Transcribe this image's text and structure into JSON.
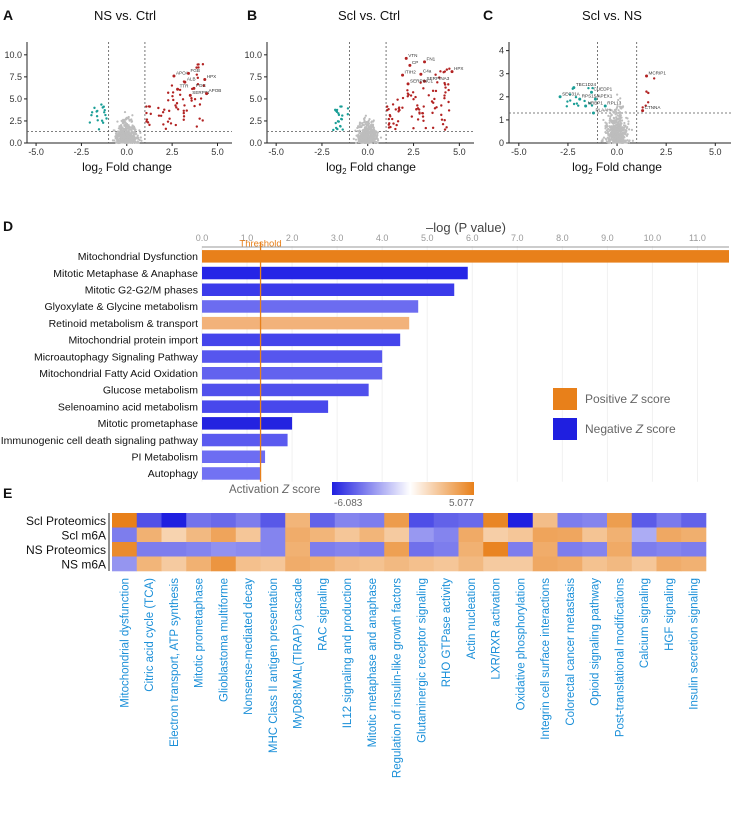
{
  "colors": {
    "up": "#b22222",
    "down": "#1a9e96",
    "ns": "#bdbdbd",
    "positive": "#e8801a",
    "negative": "#1f1fe0",
    "threshold": "#e8801a",
    "label_blue": "#1a8fd8"
  },
  "panels": {
    "A": {
      "letter": "A",
      "title": "NS vs. Ctrl",
      "xlabel_main": "log",
      "xlabel_sub": "2",
      "xlabel_tail": " Fold change"
    },
    "B": {
      "letter": "B",
      "title": "Scl vs. Ctrl",
      "xlabel_main": "log",
      "xlabel_sub": "2",
      "xlabel_tail": " Fold change"
    },
    "C": {
      "letter": "C",
      "title": "Scl vs. NS",
      "xlabel_main": "log",
      "xlabel_sub": "2",
      "xlabel_tail": " Fold change"
    },
    "D": {
      "letter": "D"
    },
    "E": {
      "letter": "E"
    }
  },
  "chart_data": [
    {
      "type": "scatter",
      "panel": "A",
      "title": "NS vs. Ctrl",
      "xlabel": "log2 Fold change",
      "xlim": [
        -5.5,
        5.8
      ],
      "ylim": [
        0,
        11
      ],
      "xticks": [
        "-5.0",
        "-2.5",
        "0.0",
        "2.5",
        "5.0"
      ],
      "xtick_values": [
        -5,
        -2.5,
        0,
        2.5,
        5
      ],
      "yticks": [
        "0.0",
        "2.5",
        "5.0",
        "7.5",
        "10.0"
      ],
      "ytick_values": [
        0,
        2.5,
        5,
        7.5,
        10
      ],
      "vlines": [
        -1,
        1
      ],
      "hline": 1.3,
      "labeled_points": [
        {
          "label": "APOA",
          "x": 2.6,
          "y": 7.6
        },
        {
          "label": "FGB",
          "x": 3.4,
          "y": 7.9
        },
        {
          "label": "ALB",
          "x": 3.2,
          "y": 6.9
        },
        {
          "label": "HPX",
          "x": 4.3,
          "y": 7.2
        },
        {
          "label": "TTR",
          "x": 2.8,
          "y": 6.1
        },
        {
          "label": "FGG",
          "x": 3.7,
          "y": 6.2
        },
        {
          "label": "SERPIN",
          "x": 3.5,
          "y": 5.4
        },
        {
          "label": "APOB",
          "x": 4.4,
          "y": 5.6
        }
      ]
    },
    {
      "type": "scatter",
      "panel": "B",
      "title": "Scl vs. Ctrl",
      "xlabel": "log2 Fold change",
      "xlim": [
        -5.5,
        5.8
      ],
      "ylim": [
        0,
        11
      ],
      "xticks": [
        "-5.0",
        "-2.5",
        "0.0",
        "2.5",
        "5.0"
      ],
      "xtick_values": [
        -5,
        -2.5,
        0,
        2.5,
        5
      ],
      "yticks": [
        "0.0",
        "2.5",
        "5.0",
        "7.5",
        "10.0"
      ],
      "ytick_values": [
        0,
        2.5,
        5,
        7.5,
        10
      ],
      "vlines": [
        -1,
        1
      ],
      "hline": 1.3,
      "labeled_points": [
        {
          "label": "VTN",
          "x": 2.1,
          "y": 9.6
        },
        {
          "label": "FN1",
          "x": 3.1,
          "y": 9.2
        },
        {
          "label": "CP",
          "x": 2.3,
          "y": 8.8
        },
        {
          "label": "C4a",
          "x": 2.9,
          "y": 7.8
        },
        {
          "label": "HPX",
          "x": 4.6,
          "y": 8.1
        },
        {
          "label": "ITIH2",
          "x": 1.9,
          "y": 7.7
        },
        {
          "label": "SERPINA3",
          "x": 3.1,
          "y": 7.0
        },
        {
          "label": "SERPINC1",
          "x": 2.2,
          "y": 6.7
        }
      ]
    },
    {
      "type": "scatter",
      "panel": "C",
      "title": "Scl vs. NS",
      "xlabel": "log2 Fold change",
      "xlim": [
        -5.5,
        5.8
      ],
      "ylim": [
        0,
        4.2
      ],
      "xticks": [
        "-5.0",
        "-2.5",
        "0.0",
        "2.5",
        "5.0"
      ],
      "xtick_values": [
        -5,
        -2.5,
        0,
        2.5,
        5
      ],
      "yticks": [
        "0",
        "1",
        "2",
        "3",
        "4"
      ],
      "ytick_values": [
        0,
        1,
        2,
        3,
        4
      ],
      "vlines": [
        -1,
        1
      ],
      "hline": 1.3,
      "labeled_points": [
        {
          "label": "MCRIP1",
          "x": 1.5,
          "y": 2.9
        },
        {
          "label": "TBC1D24",
          "x": -2.2,
          "y": 2.4
        },
        {
          "label": "CUEDP1",
          "x": -1.3,
          "y": 2.2
        },
        {
          "label": "SEC31A",
          "x": -2.9,
          "y": 2.0
        },
        {
          "label": "RPS15A",
          "x": -1.9,
          "y": 1.9
        },
        {
          "label": "APEX1",
          "x": -1.1,
          "y": 1.9
        },
        {
          "label": "NRBP1",
          "x": -1.6,
          "y": 1.6
        },
        {
          "label": "RPL13",
          "x": -0.6,
          "y": 1.6
        },
        {
          "label": "CTNNA",
          "x": 1.3,
          "y": 1.4
        },
        {
          "label": "PLAAH",
          "x": -1.2,
          "y": 1.3
        }
      ]
    },
    {
      "type": "bar",
      "panel": "D",
      "orientation": "horizontal",
      "xlabel": "–log (P value)",
      "xlim": [
        0,
        11.7
      ],
      "xticks": [
        "0.0",
        "1.0",
        "2.0",
        "3.0",
        "4.0",
        "5.0",
        "6.0",
        "7.0",
        "8.0",
        "9.0",
        "10.0",
        "11.0"
      ],
      "xtick_values": [
        0,
        1,
        2,
        3,
        4,
        5,
        6,
        7,
        8,
        9,
        10,
        11
      ],
      "threshold_label": "Threshold",
      "threshold": 1.3,
      "categories": [
        "Mitochondrial Dysfunction",
        "Mitotic Metaphase & Anaphase",
        "Mitotic G2-G2/M phases",
        "Glyoxylate & Glycine metabolism",
        "Retinoid metabolism & transport",
        "Mitochondrial protein import",
        "Microautophagy Signaling Pathway",
        "Mitochondrial Fatty Acid Oxidation",
        "Glucose metabolism",
        "Selenoamino acid metabolism",
        "Mitotic prometaphase",
        "Immunogenic cell death signaling pathway",
        "PI Metabolism",
        "Autophagy"
      ],
      "values": [
        11.7,
        5.9,
        5.6,
        4.8,
        4.6,
        4.4,
        4.0,
        4.0,
        3.7,
        2.8,
        2.0,
        1.9,
        1.4,
        1.3
      ],
      "colors": [
        "#e8801a",
        "#2525e6",
        "#3b3bea",
        "#6c6cf0",
        "#f2b27a",
        "#4444eb",
        "#5656ee",
        "#6262ef",
        "#5050ec",
        "#4848ec",
        "#2323e0",
        "#5a5aef",
        "#6d6df2",
        "#7272f3"
      ],
      "legend": [
        {
          "label_main": "Positive ",
          "label_z": "Z",
          "label_tail": " score",
          "color": "#e8801a"
        },
        {
          "label_main": "Negative ",
          "label_z": "Z",
          "label_tail": " score",
          "color": "#1f1fe0"
        }
      ]
    },
    {
      "type": "heatmap",
      "panel": "E",
      "colorbar_title_main": "Activation ",
      "colorbar_title_z": "Z",
      "colorbar_title_tail": " score",
      "colorbar_min": "-6.083",
      "colorbar_max": "5.077",
      "vmin": -6.083,
      "vmax": 5.077,
      "rows": [
        "Scl Proteomics",
        "Scl m6A",
        "NS Proteomics",
        "NS m6A"
      ],
      "columns": [
        "Mitochondrial dysfunction",
        "Citric acid cycle (TCA)",
        "Electron transport, ATP synthesis",
        "Mitotic prometaphase",
        "Glioblastoma multiforme",
        "Nonsense-mediated decay",
        "MHC Class II antigen presentation",
        "MyD88:MAL(TIRAP) cascade",
        "RAC signaling",
        "IL12 signaling and production",
        "Mitotic metaphase and anaphase",
        "Regulation of insulin-like growth factors",
        "Glutaminergic receptor signaling",
        "RHO GTPase activity",
        "Actin nucleation",
        "LXR/RXR activation",
        "Oxidative phosphorylation",
        "Integrin cell surface interactions",
        "Colorectal cancer metastasis",
        "Opioid signaling pathway",
        "Post-translational modifications",
        "Calcium signaling",
        "HGF signaling",
        "Insulin secretion signaling"
      ],
      "values": [
        [
          4.5,
          -3.5,
          -5.8,
          -2.5,
          -2.8,
          -2.2,
          -3.3,
          2.0,
          -3.0,
          -2.0,
          -2.2,
          3.2,
          -3.6,
          -3.0,
          -2.8,
          4.2,
          -5.6,
          1.6,
          -2.2,
          -2.0,
          3.1,
          -3.2,
          -2.3,
          -3.0
        ],
        [
          -2.2,
          2.2,
          0.6,
          1.8,
          2.8,
          1.2,
          -2.0,
          2.4,
          2.0,
          1.2,
          2.0,
          1.0,
          -1.4,
          -2.0,
          2.5,
          0.8,
          1.2,
          2.8,
          2.7,
          1.3,
          2.2,
          -0.8,
          2.6,
          2.3
        ],
        [
          4.0,
          -2.2,
          -2.2,
          -2.0,
          -1.6,
          -1.8,
          -2.0,
          2.2,
          -2.2,
          -2.0,
          -2.2,
          3.0,
          -2.6,
          -2.2,
          2.2,
          4.3,
          -2.2,
          2.4,
          -2.2,
          -2.0,
          2.5,
          -2.2,
          -2.0,
          -2.2
        ],
        [
          -1.5,
          2.0,
          1.0,
          2.2,
          3.5,
          1.5,
          1.2,
          2.4,
          2.2,
          1.6,
          1.4,
          1.8,
          1.5,
          1.2,
          1.8,
          1.0,
          1.0,
          2.6,
          2.4,
          1.4,
          1.8,
          1.2,
          2.4,
          2.2
        ]
      ]
    }
  ]
}
